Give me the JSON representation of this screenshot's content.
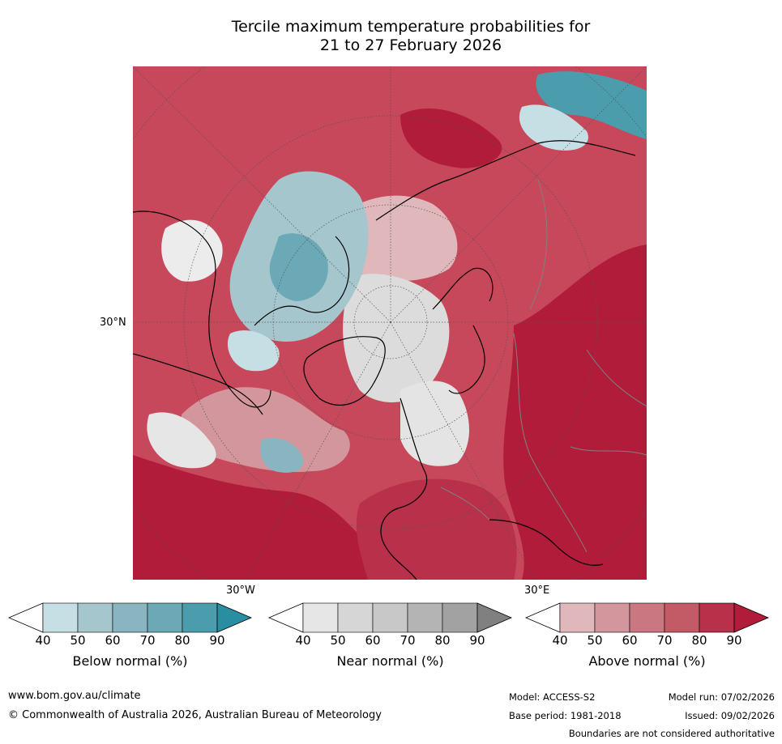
{
  "title": {
    "line1": "Tercile maximum temperature probabilities for",
    "line2": "21 to 27 February 2026"
  },
  "map": {
    "projection": "north-polar-stereographic",
    "labels": {
      "lat_30n": "30°N",
      "lon_30w": "30°W",
      "lon_30e": "30°E"
    },
    "colors": {
      "above": [
        "#e0b8bc",
        "#d4969d",
        "#c97780",
        "#c25b66",
        "#b8304a",
        "#b01c3a"
      ],
      "below": [
        "#c5dfe5",
        "#a5c6cd",
        "#88b5c0",
        "#6aa9b5",
        "#4b9dad",
        "#2a8ea3"
      ],
      "near": [
        "#e6e6e6",
        "#d6d6d6",
        "#c8c8c8",
        "#b4b4b4",
        "#a2a2a2",
        "#808080"
      ],
      "land_outline": "#000000",
      "border_outline": "#808080"
    }
  },
  "colorbars": [
    {
      "name": "below",
      "label": "Below normal (%)",
      "ticks": [
        "40",
        "50",
        "60",
        "70",
        "80",
        "90"
      ],
      "colors": [
        "#c5dfe5",
        "#a5c6cd",
        "#88b5c0",
        "#6aa9b5",
        "#4b9dad",
        "#2a8ea3"
      ]
    },
    {
      "name": "near",
      "label": "Near normal (%)",
      "ticks": [
        "40",
        "50",
        "60",
        "70",
        "80",
        "90"
      ],
      "colors": [
        "#e6e6e6",
        "#d6d6d6",
        "#c8c8c8",
        "#b4b4b4",
        "#a2a2a2",
        "#808080"
      ]
    },
    {
      "name": "above",
      "label": "Above normal (%)",
      "ticks": [
        "40",
        "50",
        "60",
        "70",
        "80",
        "90"
      ],
      "colors": [
        "#e0b8bc",
        "#d4969d",
        "#c97780",
        "#c25b66",
        "#b8304a",
        "#b01c3a"
      ]
    }
  ],
  "footer": {
    "website": "www.bom.gov.au/climate",
    "copyright": "© Commonwealth of Australia 2026, Australian Bureau of Meteorology",
    "model": "Model: ACCESS-S2",
    "base_period": "Base period: 1981-2018",
    "model_run": "Model run: 07/02/2026",
    "issued": "Issued: 09/02/2026",
    "disclaimer": "Boundaries are not considered authoritative"
  }
}
